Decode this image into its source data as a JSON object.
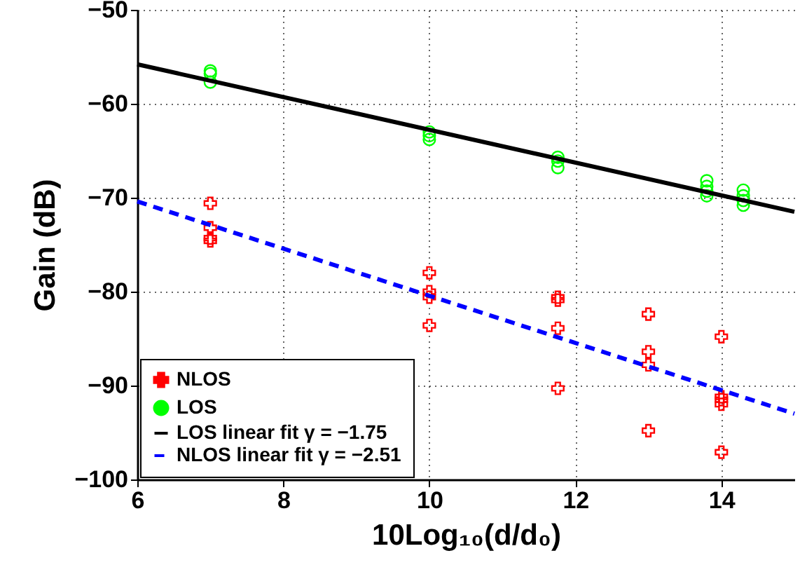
{
  "chart_data": {
    "type": "scatter",
    "xlabel": "10Log₁₀(d/d₀)",
    "ylabel": "Gain (dB)",
    "xlim": [
      6,
      15
    ],
    "ylim": [
      -100,
      -50
    ],
    "xticks": [
      6,
      8,
      10,
      12,
      14
    ],
    "yticks": [
      -100,
      -90,
      -80,
      -70,
      -60,
      -50
    ],
    "grid": true,
    "legend": "bottom left",
    "series": [
      {
        "name": "NLOS",
        "type": "scatter",
        "marker": "cross",
        "color": "#ff0000",
        "x": [
          7,
          7,
          7,
          7,
          10,
          10,
          10,
          10,
          11.76,
          11.76,
          11.76,
          11.76,
          13,
          13,
          13,
          13,
          14,
          14,
          14,
          14,
          14
        ],
        "values": [
          -70.6,
          -73.2,
          -74.3,
          -74.6,
          -78,
          -80,
          -80.6,
          -83.6,
          -80.6,
          -80.9,
          -83.9,
          -90.3,
          -82.4,
          -86.4,
          -87.8,
          -94.8,
          -84.8,
          -91.2,
          -91.5,
          -92,
          -97.1
        ]
      },
      {
        "name": "LOS",
        "type": "scatter",
        "marker": "circle",
        "color": "#00ff00",
        "x": [
          7,
          7,
          7,
          10,
          10,
          10,
          11.76,
          11.76,
          11.76,
          13.8,
          13.8,
          13.8,
          13.8,
          14.3,
          14.3,
          14.3,
          14.3
        ],
        "values": [
          -56.5,
          -56.8,
          -57.7,
          -63,
          -63.4,
          -63.8,
          -65.7,
          -66.1,
          -66.8,
          -68.2,
          -68.8,
          -69.3,
          -69.8,
          -69.2,
          -69.8,
          -70.3,
          -70.8
        ]
      },
      {
        "name": "LOS linear fit γ = −1.75",
        "type": "line",
        "line_style": "solid",
        "color": "#000000",
        "x": [
          6,
          15
        ],
        "values": [
          -55.8,
          -71.5
        ]
      },
      {
        "name": "NLOS linear fit γ = −2.51",
        "type": "line",
        "line_style": "dashed",
        "color": "#0000ff",
        "x": [
          6,
          15
        ],
        "values": [
          -70.4,
          -93
        ]
      }
    ]
  }
}
